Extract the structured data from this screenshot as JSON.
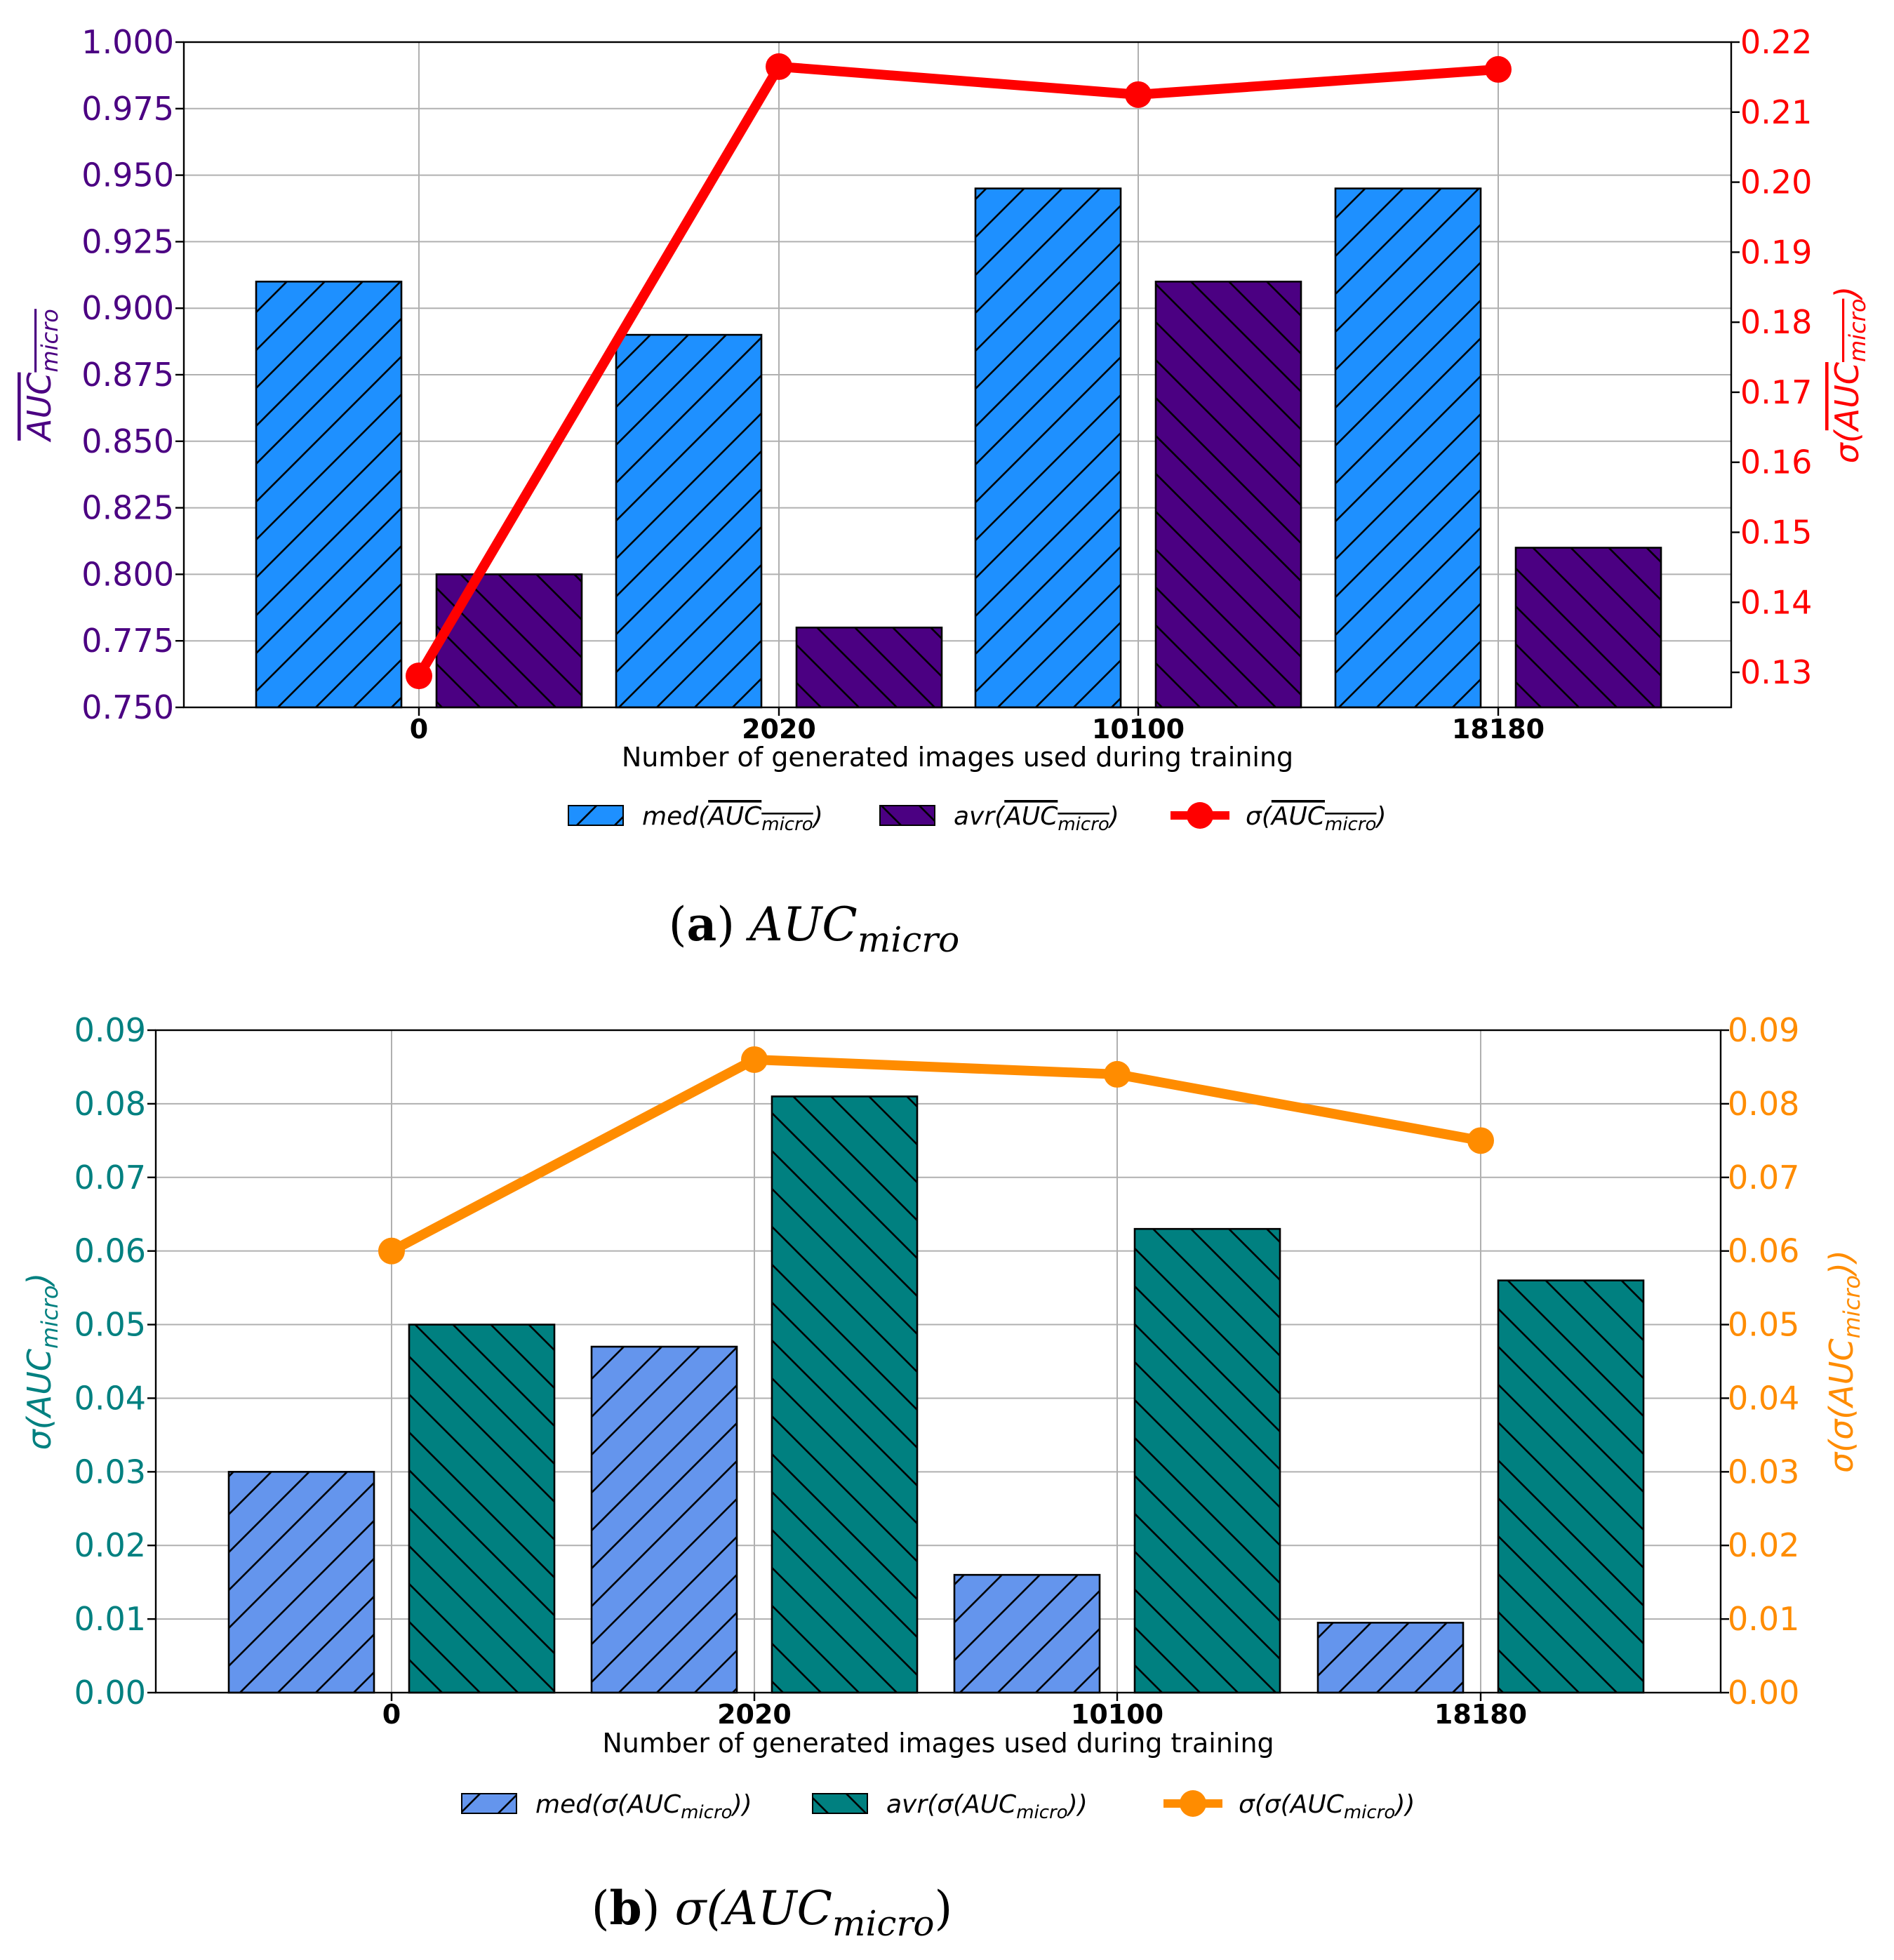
{
  "chart_data": [
    {
      "type": "bar",
      "caption_label": "(a)",
      "caption_text": "AUC",
      "caption_sub": "micro",
      "categories": [
        "0",
        "2020",
        "10100",
        "18180"
      ],
      "xlabel": "Number of generated images used during training",
      "ylabel": {
        "base": "AUC",
        "sub": "micro",
        "overline": true
      },
      "y2label": {
        "prefix": "σ(",
        "base": "AUC",
        "sub": "micro",
        "suffix": ")",
        "overline": true
      },
      "ylim": [
        0.75,
        1.0
      ],
      "yticks": [
        "0.750",
        "0.775",
        "0.800",
        "0.825",
        "0.850",
        "0.875",
        "0.900",
        "0.925",
        "0.950",
        "0.975",
        "1.000"
      ],
      "y2lim": [
        0.125,
        0.22
      ],
      "y2ticks": [
        "0.13",
        "0.14",
        "0.15",
        "0.16",
        "0.17",
        "0.18",
        "0.19",
        "0.20",
        "0.21",
        "0.22"
      ],
      "y_color": "#4b0082",
      "y2_color": "#ff0000",
      "series": [
        {
          "name": "med",
          "kind": "bar",
          "color": "#1e90ff",
          "hatch": "/",
          "values": [
            0.91,
            0.89,
            0.945,
            0.945
          ],
          "legend": {
            "fn": "med(",
            "base": "AUC",
            "sub": "micro",
            "close": ")",
            "overline": true
          }
        },
        {
          "name": "avr",
          "kind": "bar",
          "color": "#4b0082",
          "hatch": "\\",
          "values": [
            0.8,
            0.78,
            0.91,
            0.81
          ],
          "legend": {
            "fn": "avr(",
            "base": "AUC",
            "sub": "micro",
            "close": ")",
            "overline": true
          }
        },
        {
          "name": "sigma",
          "kind": "line",
          "axis": "right",
          "color": "#ff0000",
          "values": [
            0.1295,
            0.2165,
            0.2125,
            0.2161
          ],
          "legend": {
            "fn": "σ(",
            "base": "AUC",
            "sub": "micro",
            "close": ")",
            "overline": true
          }
        }
      ]
    },
    {
      "type": "bar",
      "caption_label": "(b)",
      "caption_text": "σ(AUC",
      "caption_sub": "micro",
      "caption_close": ")",
      "categories": [
        "0",
        "2020",
        "10100",
        "18180"
      ],
      "xlabel": "Number of generated images used during training",
      "ylabel": {
        "prefix": "σ(",
        "base": "AUC",
        "sub": "micro",
        "suffix": ")",
        "overline": false
      },
      "y2label": {
        "prefix": "σ(σ(",
        "base": "AUC",
        "sub": "micro",
        "suffix": "))",
        "overline": false
      },
      "ylim": [
        0.0,
        0.09
      ],
      "yticks": [
        "0.00",
        "0.01",
        "0.02",
        "0.03",
        "0.04",
        "0.05",
        "0.06",
        "0.07",
        "0.08",
        "0.09"
      ],
      "y2lim": [
        0.0,
        0.09
      ],
      "y2ticks": [
        "0.00",
        "0.01",
        "0.02",
        "0.03",
        "0.04",
        "0.05",
        "0.06",
        "0.07",
        "0.08",
        "0.09"
      ],
      "y_color": "#008080",
      "y2_color": "#ff8c00",
      "series": [
        {
          "name": "med",
          "kind": "bar",
          "color": "#6495ed",
          "hatch": "/",
          "values": [
            0.03,
            0.047,
            0.016,
            0.0095
          ],
          "legend": {
            "fn": "med(σ(",
            "base": "AUC",
            "sub": "micro",
            "close": "))",
            "overline": false
          }
        },
        {
          "name": "avr",
          "kind": "bar",
          "color": "#008080",
          "hatch": "\\",
          "values": [
            0.05,
            0.081,
            0.063,
            0.056
          ],
          "legend": {
            "fn": "avr(σ(",
            "base": "AUC",
            "sub": "micro",
            "close": "))",
            "overline": false
          }
        },
        {
          "name": "sigma",
          "kind": "line",
          "axis": "right",
          "color": "#ff8c00",
          "values": [
            0.06,
            0.086,
            0.084,
            0.075
          ],
          "legend": {
            "fn": "σ(σ(",
            "base": "AUC",
            "sub": "micro",
            "close": "))",
            "overline": false
          }
        }
      ]
    }
  ]
}
